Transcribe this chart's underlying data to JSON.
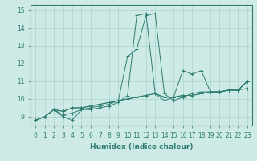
{
  "xlabel": "Humidex (Indice chaleur)",
  "bg_color": "#ceeae7",
  "grid_color": "#aad4d0",
  "line_color": "#2e7d6e",
  "xlim": [
    -0.5,
    23.5
  ],
  "ylim": [
    8.5,
    15.3
  ],
  "xticks": [
    0,
    1,
    2,
    3,
    4,
    5,
    6,
    7,
    8,
    9,
    10,
    11,
    12,
    13,
    14,
    15,
    16,
    17,
    18,
    19,
    20,
    21,
    22,
    23
  ],
  "yticks": [
    9,
    10,
    11,
    12,
    13,
    14,
    15
  ],
  "series": [
    [
      8.8,
      9.0,
      9.4,
      9.0,
      8.8,
      9.4,
      9.4,
      9.5,
      9.6,
      9.8,
      10.2,
      14.7,
      14.8,
      10.3,
      9.9,
      10.1,
      11.6,
      11.4,
      11.6,
      10.4,
      10.4,
      10.5,
      10.5,
      11.0
    ],
    [
      8.8,
      9.0,
      9.4,
      9.3,
      9.5,
      9.5,
      9.6,
      9.7,
      9.8,
      9.9,
      10.0,
      10.1,
      10.2,
      10.3,
      10.1,
      10.1,
      10.2,
      10.2,
      10.3,
      10.4,
      10.4,
      10.5,
      10.5,
      10.6
    ],
    [
      8.8,
      9.0,
      9.4,
      9.3,
      9.5,
      9.5,
      9.6,
      9.7,
      9.8,
      9.9,
      10.0,
      10.1,
      10.2,
      10.3,
      10.1,
      10.1,
      10.2,
      10.2,
      10.3,
      10.4,
      10.4,
      10.5,
      10.5,
      11.0
    ],
    [
      8.8,
      9.0,
      9.4,
      9.1,
      9.2,
      9.4,
      9.5,
      9.6,
      9.7,
      9.9,
      12.4,
      12.8,
      14.7,
      14.8,
      10.3,
      9.9,
      10.1,
      10.3,
      10.4,
      10.4,
      10.4,
      10.5,
      10.5,
      11.0
    ]
  ],
  "tick_fontsize": 5.5,
  "xlabel_fontsize": 6.5,
  "xlabel_fontweight": "bold"
}
